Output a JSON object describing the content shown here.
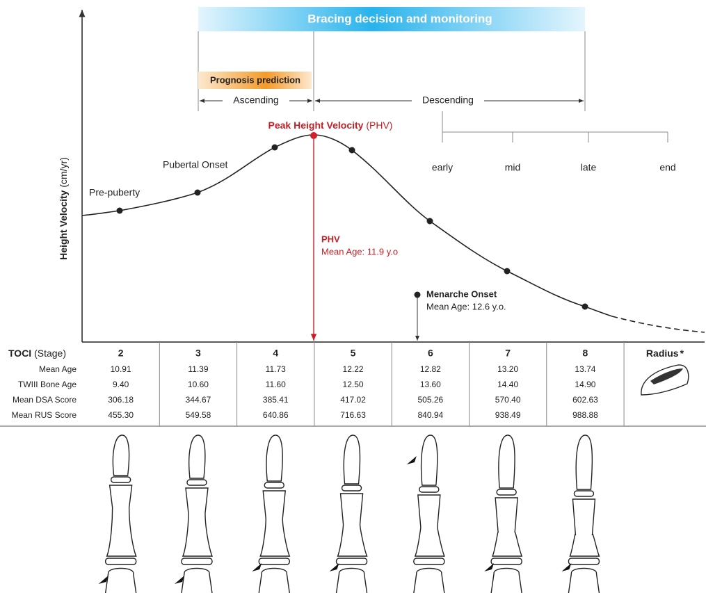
{
  "banner": "Bracing decision and monitoring",
  "prognosis": "Prognosis prediction",
  "ascending": "Ascending",
  "descending": "Descending",
  "phases": [
    "early",
    "mid",
    "late",
    "end"
  ],
  "y_axis": {
    "label": "Height Velocity",
    "unit": "(cm/yr)"
  },
  "curve_labels": {
    "pre_puberty": "Pre-puberty",
    "pubertal_onset": "Pubertal Onset",
    "phv_title": "Peak Height Velocity",
    "phv_abbr": "(PHV)"
  },
  "phv_note": {
    "title": "PHV",
    "text": "Mean Age: 11.9 y.o"
  },
  "menarche": {
    "title": "Menarche Onset",
    "text": "Mean Age: 12.6 y.o."
  },
  "table": {
    "header": {
      "label": "TOCI",
      "sub": "(Stage)"
    },
    "stages": [
      "2",
      "3",
      "4",
      "5",
      "6",
      "7",
      "8"
    ],
    "radius": "Radius",
    "radius_mark": "*",
    "rows": [
      {
        "label": "Mean Age",
        "values": [
          "10.91",
          "11.39",
          "11.73",
          "12.22",
          "12.82",
          "13.20",
          "13.74"
        ]
      },
      {
        "label": "TWIII Bone Age",
        "values": [
          "9.40",
          "10.60",
          "11.60",
          "12.50",
          "13.60",
          "14.40",
          "14.90"
        ]
      },
      {
        "label": "Mean DSA Score",
        "values": [
          "306.18",
          "344.67",
          "385.41",
          "417.02",
          "505.26",
          "570.40",
          "602.63"
        ]
      },
      {
        "label": "Mean RUS Score",
        "values": [
          "455.30",
          "549.58",
          "640.86",
          "716.63",
          "840.94",
          "938.49",
          "988.88"
        ]
      }
    ]
  }
}
